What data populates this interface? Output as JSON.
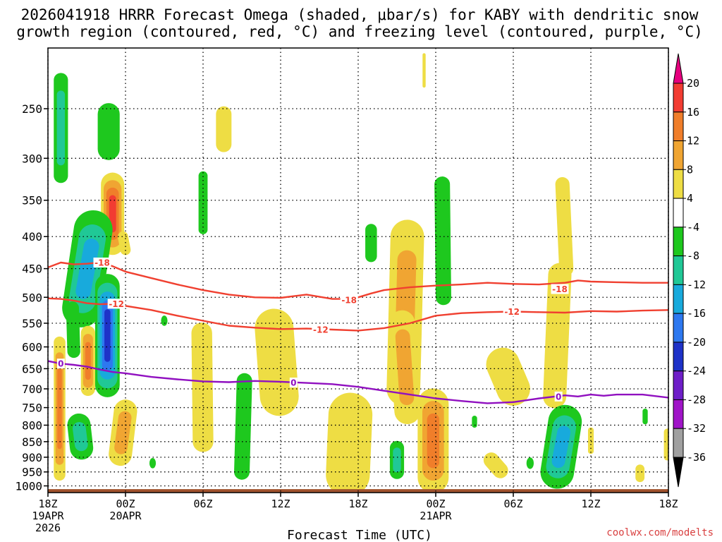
{
  "chart_data": {
    "type": "heatmap",
    "title_lines": [
      "2026041918 HRRR Forecast Omega (shaded, μbar/s) for KABY with dendritic snow",
      "growth region (contoured, red, °C) and freezing level (contoured, purple, °C)"
    ],
    "xlabel": "Forecast Time (UTC)",
    "credit": "coolwx.com/modelts",
    "y_axis": {
      "unit": "hPa",
      "ticks": [
        250,
        300,
        350,
        400,
        450,
        500,
        550,
        600,
        650,
        700,
        750,
        800,
        850,
        900,
        950,
        1000
      ],
      "range": [
        200,
        1025
      ]
    },
    "x_axis": {
      "unit": "forecast hour",
      "range": [
        0,
        48
      ],
      "ticks": [
        {
          "hour": 0,
          "line1": "18Z",
          "line2": "19APR",
          "line3": "2026"
        },
        {
          "hour": 6,
          "line1": "00Z",
          "line2": "20APR",
          "line3": ""
        },
        {
          "hour": 12,
          "line1": "06Z",
          "line2": "",
          "line3": ""
        },
        {
          "hour": 18,
          "line1": "12Z",
          "line2": "",
          "line3": ""
        },
        {
          "hour": 24,
          "line1": "18Z",
          "line2": "",
          "line3": ""
        },
        {
          "hour": 30,
          "line1": "00Z",
          "line2": "21APR",
          "line3": ""
        },
        {
          "hour": 36,
          "line1": "06Z",
          "line2": "",
          "line3": ""
        },
        {
          "hour": 42,
          "line1": "12Z",
          "line2": "",
          "line3": ""
        },
        {
          "hour": 48,
          "line1": "18Z",
          "line2": "",
          "line3": ""
        }
      ]
    },
    "colorbar": {
      "labels": [
        "20",
        "16",
        "12",
        "8",
        "4",
        "-4",
        "-8",
        "-12",
        "-16",
        "-20",
        "-24",
        "-28",
        "-32",
        "-36"
      ],
      "bins": [
        {
          "color": "#e6007e"
        },
        {
          "color": "#f23c32"
        },
        {
          "color": "#f07e2a"
        },
        {
          "color": "#f0a532"
        },
        {
          "color": "#eedd44"
        },
        {
          "color": "#ffffff"
        },
        {
          "color": "#1ec81e"
        },
        {
          "color": "#20c896"
        },
        {
          "color": "#18aadc"
        },
        {
          "color": "#2d78f0"
        },
        {
          "color": "#1e32c8"
        },
        {
          "color": "#6e1ec8"
        },
        {
          "color": "#a014c8"
        },
        {
          "color": "#a0a0a0"
        },
        {
          "color": "#000000"
        }
      ]
    },
    "omega_blobs": [
      {
        "t": 1.0,
        "p": 225,
        "t2": 1.0,
        "p2": 320,
        "w": 0.55,
        "shades": [
          "#1ec81e",
          "#20c896"
        ]
      },
      {
        "t": 4.7,
        "p": 255,
        "t2": 4.7,
        "p2": 290,
        "w": 0.85,
        "shades": [
          "#1ec81e"
        ]
      },
      {
        "t": 13.6,
        "p": 285,
        "t2": 13.6,
        "p2": 255,
        "w": 0.6,
        "shades": [
          "#eedd44"
        ]
      },
      {
        "t": 5.0,
        "p": 330,
        "t2": 5.0,
        "p2": 410,
        "w": 0.9,
        "shades": [
          "#eedd44",
          "#f0a532",
          "#f07e2a",
          "#f23c32"
        ]
      },
      {
        "t": 5.8,
        "p": 400,
        "t2": 6.0,
        "p2": 420,
        "w": 0.4,
        "shades": [
          "#eedd44"
        ]
      },
      {
        "t": 12.0,
        "p": 320,
        "t2": 12.0,
        "p2": 390,
        "w": 0.35,
        "shades": [
          "#1ec81e"
        ]
      },
      {
        "t": 25.0,
        "p": 390,
        "t2": 25.0,
        "p2": 430,
        "w": 0.45,
        "shades": [
          "#1ec81e"
        ]
      },
      {
        "t": 30.5,
        "p": 330,
        "t2": 30.6,
        "p2": 500,
        "w": 0.6,
        "shades": [
          "#1ec81e"
        ]
      },
      {
        "t": 3.5,
        "p": 390,
        "t2": 2.6,
        "p2": 520,
        "w": 1.5,
        "shades": [
          "#1ec81e",
          "#20c896",
          "#18aadc"
        ]
      },
      {
        "t": 1.9,
        "p": 520,
        "t2": 2.0,
        "p2": 610,
        "w": 0.5,
        "shades": [
          "#1ec81e"
        ]
      },
      {
        "t": 4.6,
        "p": 480,
        "t2": 4.6,
        "p2": 690,
        "w": 0.95,
        "shades": [
          "#1ec81e",
          "#20c896",
          "#18aadc",
          "#2d78f0",
          "#1e32c8"
        ]
      },
      {
        "t": 0.9,
        "p": 590,
        "t2": 0.9,
        "p2": 960,
        "w": 0.45,
        "shades": [
          "#eedd44",
          "#f0a532",
          "#f07e2a"
        ]
      },
      {
        "t": 3.1,
        "p": 570,
        "t2": 3.1,
        "p2": 700,
        "w": 0.55,
        "shades": [
          "#eedd44",
          "#f0a532",
          "#f07e2a"
        ]
      },
      {
        "t": 9.0,
        "p": 545,
        "t2": 9.0,
        "p2": 545,
        "w": 0.25,
        "shades": [
          "#1ec81e"
        ]
      },
      {
        "t": 11.9,
        "p": 570,
        "t2": 12.0,
        "p2": 850,
        "w": 0.8,
        "shades": [
          "#eedd44"
        ]
      },
      {
        "t": 15.2,
        "p": 680,
        "t2": 15.0,
        "p2": 950,
        "w": 0.6,
        "shades": [
          "#1ec81e"
        ]
      },
      {
        "t": 17.5,
        "p": 560,
        "t2": 17.9,
        "p2": 720,
        "w": 1.5,
        "shades": [
          "#eedd44"
        ]
      },
      {
        "t": 6.0,
        "p": 760,
        "t2": 5.6,
        "p2": 890,
        "w": 0.9,
        "shades": [
          "#eedd44",
          "#f0a532"
        ]
      },
      {
        "t": 2.4,
        "p": 800,
        "t2": 2.6,
        "p2": 870,
        "w": 0.9,
        "shades": [
          "#1ec81e",
          "#20c896"
        ]
      },
      {
        "t": 8.1,
        "p": 920,
        "t2": 8.1,
        "p2": 920,
        "w": 0.25,
        "shades": [
          "#1ec81e"
        ]
      },
      {
        "t": 23.4,
        "p": 770,
        "t2": 23.2,
        "p2": 960,
        "w": 1.7,
        "shades": [
          "#eedd44"
        ]
      },
      {
        "t": 27.8,
        "p": 400,
        "t2": 27.5,
        "p2": 700,
        "w": 1.3,
        "shades": [
          "#eedd44",
          "#f0a532"
        ]
      },
      {
        "t": 27.4,
        "p": 550,
        "t2": 27.8,
        "p2": 760,
        "w": 1.0,
        "shades": [
          "#eedd44",
          "#f0a532"
        ]
      },
      {
        "t": 27.0,
        "p": 870,
        "t2": 27.0,
        "p2": 950,
        "w": 0.55,
        "shades": [
          "#1ec81e",
          "#20c896"
        ]
      },
      {
        "t": 29.8,
        "p": 740,
        "t2": 29.8,
        "p2": 970,
        "w": 1.2,
        "shades": [
          "#eedd44",
          "#f0a532",
          "#f07e2a"
        ]
      },
      {
        "t": 33.0,
        "p": 780,
        "t2": 33.0,
        "p2": 800,
        "w": 0.2,
        "shades": [
          "#1ec81e"
        ]
      },
      {
        "t": 35.2,
        "p": 640,
        "t2": 36.0,
        "p2": 700,
        "w": 1.3,
        "shades": [
          "#eedd44"
        ]
      },
      {
        "t": 34.3,
        "p": 910,
        "t2": 35.0,
        "p2": 945,
        "w": 0.6,
        "shades": [
          "#eedd44"
        ]
      },
      {
        "t": 37.3,
        "p": 920,
        "t2": 37.3,
        "p2": 920,
        "w": 0.28,
        "shades": [
          "#1ec81e"
        ]
      },
      {
        "t": 39.8,
        "p": 330,
        "t2": 40.1,
        "p2": 450,
        "w": 0.55,
        "shades": [
          "#eedd44"
        ]
      },
      {
        "t": 39.6,
        "p": 460,
        "t2": 39.2,
        "p2": 720,
        "w": 0.9,
        "shades": [
          "#eedd44"
        ]
      },
      {
        "t": 40.0,
        "p": 790,
        "t2": 39.4,
        "p2": 950,
        "w": 1.3,
        "shades": [
          "#1ec81e",
          "#20c896",
          "#18aadc"
        ]
      },
      {
        "t": 42.0,
        "p": 815,
        "t2": 42.0,
        "p2": 880,
        "w": 0.22,
        "shades": [
          "#eedd44"
        ]
      },
      {
        "t": 46.2,
        "p": 760,
        "t2": 46.2,
        "p2": 790,
        "w": 0.2,
        "shades": [
          "#1ec81e"
        ]
      },
      {
        "t": 45.8,
        "p": 940,
        "t2": 45.8,
        "p2": 970,
        "w": 0.35,
        "shades": [
          "#eedd44"
        ]
      },
      {
        "t": 47.9,
        "p": 820,
        "t2": 47.9,
        "p2": 900,
        "w": 0.25,
        "shades": [
          "#eedd44"
        ]
      },
      {
        "t": 29.1,
        "p": 205,
        "t2": 29.1,
        "p2": 230,
        "w": 0.12,
        "shades": [
          "#eedd44"
        ]
      }
    ],
    "contours": [
      {
        "name": "minus-18-isotherm",
        "label": "-18",
        "color": "#f04030",
        "label_at": [
          {
            "t": 4.2,
            "p": 440
          },
          {
            "t": 23.3,
            "p": 505
          },
          {
            "t": 39.6,
            "p": 485
          }
        ],
        "points": [
          [
            0,
            448
          ],
          [
            1,
            440
          ],
          [
            2,
            443
          ],
          [
            3,
            442
          ],
          [
            4,
            440
          ],
          [
            5,
            446
          ],
          [
            6,
            455
          ],
          [
            8,
            466
          ],
          [
            10,
            477
          ],
          [
            12,
            487
          ],
          [
            14,
            495
          ],
          [
            16,
            500
          ],
          [
            18,
            501
          ],
          [
            19,
            498
          ],
          [
            20,
            495
          ],
          [
            22,
            503
          ],
          [
            23,
            503
          ],
          [
            24,
            500
          ],
          [
            25,
            493
          ],
          [
            26,
            487
          ],
          [
            28,
            482
          ],
          [
            30,
            479
          ],
          [
            32,
            477
          ],
          [
            34,
            474
          ],
          [
            36,
            476
          ],
          [
            38,
            477
          ],
          [
            40,
            474
          ],
          [
            41,
            470
          ],
          [
            42,
            472
          ],
          [
            44,
            473
          ],
          [
            46,
            474
          ],
          [
            48,
            474
          ]
        ]
      },
      {
        "name": "minus-12-isotherm",
        "label": "-12",
        "color": "#f04030",
        "label_at": [
          {
            "t": 5.3,
            "p": 512
          },
          {
            "t": 21.1,
            "p": 563
          },
          {
            "t": 35.9,
            "p": 527
          }
        ],
        "points": [
          [
            0,
            502
          ],
          [
            1,
            503
          ],
          [
            2,
            506
          ],
          [
            3,
            511
          ],
          [
            4,
            513
          ],
          [
            5,
            512
          ],
          [
            6,
            516
          ],
          [
            8,
            524
          ],
          [
            10,
            535
          ],
          [
            12,
            545
          ],
          [
            14,
            555
          ],
          [
            16,
            559
          ],
          [
            18,
            562
          ],
          [
            20,
            561
          ],
          [
            22,
            563
          ],
          [
            24,
            565
          ],
          [
            26,
            560
          ],
          [
            28,
            550
          ],
          [
            30,
            535
          ],
          [
            32,
            530
          ],
          [
            34,
            528
          ],
          [
            36,
            527
          ],
          [
            38,
            528
          ],
          [
            40,
            529
          ],
          [
            42,
            526
          ],
          [
            44,
            527
          ],
          [
            46,
            525
          ],
          [
            48,
            524
          ]
        ]
      },
      {
        "name": "freezing-level",
        "label": "0",
        "color": "#9010c0",
        "label_at": [
          {
            "t": 1.0,
            "p": 638
          },
          {
            "t": 19.0,
            "p": 684
          },
          {
            "t": 39.5,
            "p": 720
          }
        ],
        "points": [
          [
            0,
            632
          ],
          [
            1,
            638
          ],
          [
            2,
            641
          ],
          [
            3,
            645
          ],
          [
            4,
            652
          ],
          [
            5,
            658
          ],
          [
            6,
            661
          ],
          [
            8,
            670
          ],
          [
            10,
            676
          ],
          [
            12,
            681
          ],
          [
            14,
            683
          ],
          [
            16,
            680
          ],
          [
            18,
            682
          ],
          [
            20,
            685
          ],
          [
            22,
            688
          ],
          [
            24,
            695
          ],
          [
            26,
            705
          ],
          [
            28,
            715
          ],
          [
            30,
            725
          ],
          [
            32,
            732
          ],
          [
            34,
            738
          ],
          [
            36,
            735
          ],
          [
            38,
            725
          ],
          [
            40,
            717
          ],
          [
            41,
            720
          ],
          [
            42,
            715
          ],
          [
            43,
            718
          ],
          [
            44,
            715
          ],
          [
            46,
            715
          ],
          [
            48,
            723
          ]
        ]
      }
    ]
  }
}
